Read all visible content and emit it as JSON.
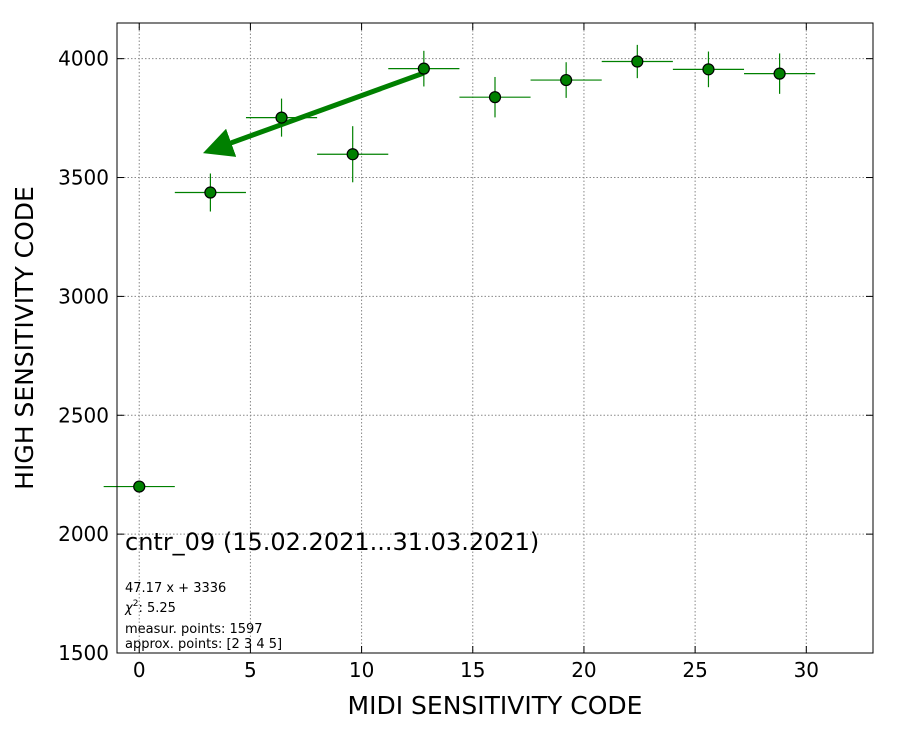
{
  "chart_data": {
    "type": "scatter",
    "xlabel": "MIDI SENSITIVITY CODE",
    "ylabel": "HIGH SENSITIVITY CODE",
    "xlim": [
      -1,
      33
    ],
    "ylim": [
      1500,
      4150
    ],
    "x_ticks": [
      0,
      5,
      10,
      15,
      20,
      25,
      30
    ],
    "y_ticks": [
      1500,
      2000,
      2500,
      3000,
      3500,
      4000
    ],
    "grid": true,
    "colors": {
      "points": "#008000",
      "marker_edge": "#000000",
      "fit_line": "#008000",
      "grid": "#888888"
    },
    "points": [
      {
        "x": 0.0,
        "y": 2200,
        "xerr": 1.6,
        "yerr": 0
      },
      {
        "x": 3.2,
        "y": 3437,
        "xerr": 1.6,
        "yerr": 80
      },
      {
        "x": 6.4,
        "y": 3752,
        "xerr": 1.6,
        "yerr": 80
      },
      {
        "x": 9.6,
        "y": 3598,
        "xerr": 1.6,
        "yerr": 118
      },
      {
        "x": 12.8,
        "y": 3958,
        "xerr": 1.6,
        "yerr": 75
      },
      {
        "x": 16.0,
        "y": 3838,
        "xerr": 1.6,
        "yerr": 85
      },
      {
        "x": 19.2,
        "y": 3910,
        "xerr": 1.6,
        "yerr": 75
      },
      {
        "x": 22.4,
        "y": 3988,
        "xerr": 1.6,
        "yerr": 70
      },
      {
        "x": 25.6,
        "y": 3955,
        "xerr": 1.6,
        "yerr": 75
      },
      {
        "x": 28.8,
        "y": 3937,
        "xerr": 1.6,
        "yerr": 85
      }
    ],
    "fit": {
      "slope": 47.17,
      "intercept": 3336,
      "x_from": 12.8,
      "x_to": 3.2
    },
    "annotations": {
      "title": "cntr_09 (15.02.2021...31.03.2021)",
      "equation": "47.17 x + 3336",
      "chi2_prefix": "χ",
      "chi2_sup": "2",
      "chi2_value": ": 5.25",
      "measur_points": "measur. points: 1597",
      "approx_points": "approx. points: [2 3 4 5]"
    }
  }
}
